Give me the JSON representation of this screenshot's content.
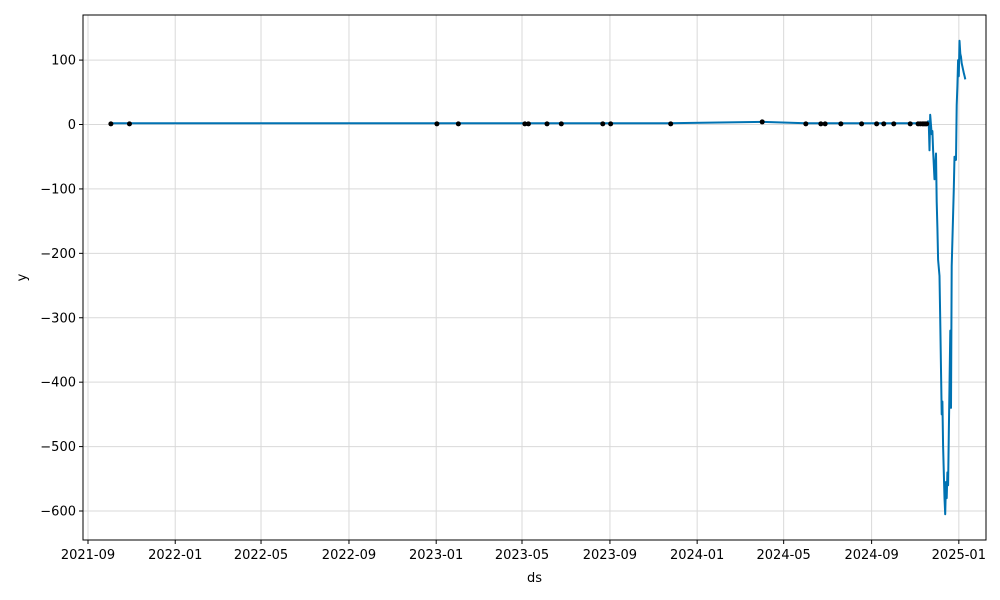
{
  "chart_data": {
    "type": "line",
    "xlabel": "ds",
    "ylabel": "y",
    "grid": true,
    "x_axis_type": "date",
    "xlim": [
      "2021-08-25",
      "2025-02-08"
    ],
    "ylim": [
      -645,
      170
    ],
    "x_ticks": [
      "2021-09",
      "2022-01",
      "2022-05",
      "2022-09",
      "2023-01",
      "2023-05",
      "2023-09",
      "2024-01",
      "2024-05",
      "2024-09",
      "2025-01"
    ],
    "y_ticks": [
      100,
      0,
      -100,
      -200,
      -300,
      -400,
      -500,
      -600
    ],
    "y_tick_labels": [
      "100",
      "0",
      "−100",
      "−200",
      "−300",
      "−400",
      "−500",
      "−600"
    ],
    "colors": {
      "forecast_line": "#0072B2",
      "observations": "#000000",
      "grid": "#d9d9d9"
    },
    "series": [
      {
        "type": "line",
        "x": [
          "2021-10-03",
          "2021-11-01",
          "2022-05-01",
          "2023-01-01",
          "2023-06-01",
          "2023-09-01",
          "2023-11-20",
          "2024-04-02",
          "2024-06-01",
          "2024-09-01",
          "2024-11-10",
          "2024-11-18",
          "2024-11-19",
          "2024-11-20",
          "2024-11-21",
          "2024-11-22",
          "2024-11-24",
          "2024-11-25",
          "2024-11-26",
          "2024-11-28",
          "2024-11-30",
          "2024-12-01",
          "2024-12-02",
          "2024-12-03",
          "2024-12-05",
          "2024-12-06",
          "2024-12-07",
          "2024-12-08",
          "2024-12-09",
          "2024-12-10",
          "2024-12-11",
          "2024-12-12",
          "2024-12-13",
          "2024-12-14",
          "2024-12-15",
          "2024-12-16",
          "2024-12-17",
          "2024-12-18",
          "2024-12-20",
          "2024-12-21",
          "2024-12-22",
          "2024-12-23",
          "2024-12-25",
          "2024-12-26",
          "2024-12-28",
          "2024-12-29",
          "2024-12-30",
          "2024-12-31",
          "2025-01-01",
          "2025-01-02",
          "2025-01-03",
          "2025-01-04",
          "2025-01-05",
          "2025-01-06",
          "2025-01-07",
          "2025-01-08",
          "2025-01-09",
          "2025-01-10"
        ],
        "y": [
          2,
          2,
          2,
          2,
          2,
          2,
          2,
          4,
          2,
          2,
          2,
          3,
          5,
          0,
          -40,
          15,
          -15,
          -10,
          -40,
          -85,
          -45,
          -120,
          -160,
          -210,
          -235,
          -300,
          -380,
          -450,
          -430,
          -500,
          -540,
          -580,
          -605,
          -555,
          -580,
          -540,
          -560,
          -480,
          -320,
          -440,
          -220,
          -180,
          -100,
          -50,
          -55,
          30,
          60,
          100,
          75,
          130,
          110,
          105,
          95,
          90,
          85,
          80,
          75,
          70
        ]
      },
      {
        "type": "scatter",
        "x": [
          "2021-10-03",
          "2021-10-29",
          "2023-01-02",
          "2023-02-01",
          "2023-05-05",
          "2023-05-10",
          "2023-06-05",
          "2023-06-25",
          "2023-08-22",
          "2023-09-02",
          "2023-11-25",
          "2024-04-01",
          "2024-06-01",
          "2024-06-22",
          "2024-06-28",
          "2024-07-20",
          "2024-08-18",
          "2024-09-08",
          "2024-09-18",
          "2024-10-02",
          "2024-10-25",
          "2024-11-05",
          "2024-11-08",
          "2024-11-11",
          "2024-11-13",
          "2024-11-15",
          "2024-11-17"
        ],
        "y": [
          1,
          1,
          1,
          1,
          1,
          1,
          1,
          1,
          1,
          1,
          1,
          4,
          1,
          1,
          1,
          1,
          1,
          1,
          1,
          1,
          1,
          1,
          1,
          1,
          1,
          1,
          1
        ]
      }
    ]
  }
}
